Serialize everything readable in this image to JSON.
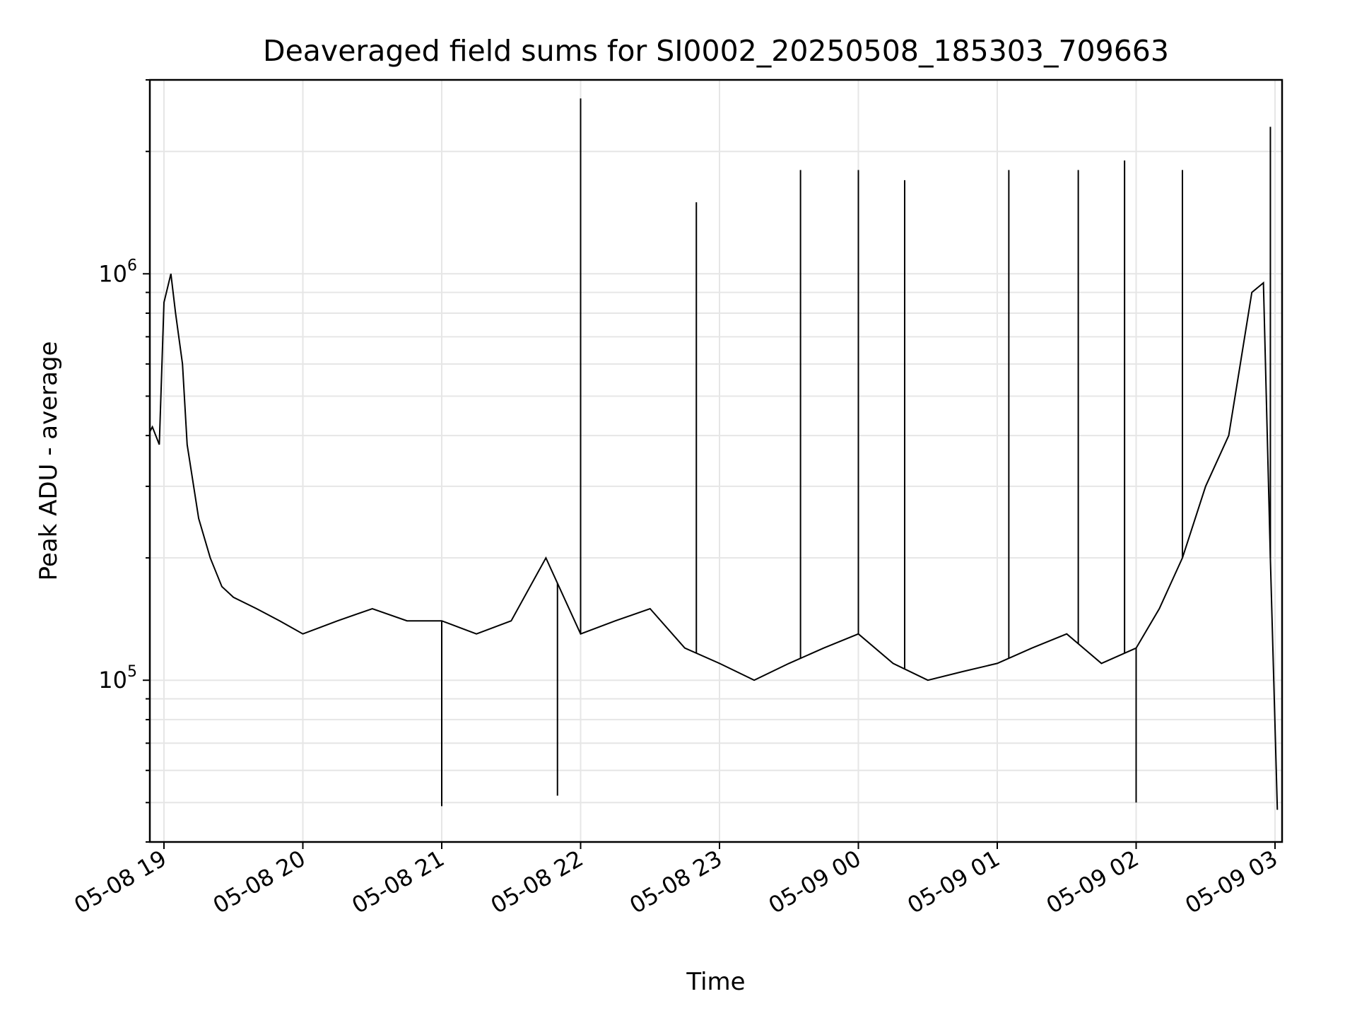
{
  "chart_data": {
    "type": "line",
    "title": "Deaveraged field sums for SI0002_20250508_185303_709663",
    "xlabel": "Time",
    "ylabel": "Peak ADU - average",
    "yscale": "log",
    "ylim": [
      40000,
      3000000
    ],
    "xlim": [
      "05-08 18:53",
      "05-09 03:01"
    ],
    "grid": true,
    "x_ticks": [
      "05-08 19",
      "05-08 20",
      "05-08 21",
      "05-08 22",
      "05-08 23",
      "05-09 00",
      "05-09 01",
      "05-09 02",
      "05-09 03"
    ],
    "y_ticks": [
      {
        "value": 100000,
        "base": "10",
        "exp": "5"
      },
      {
        "value": 1000000,
        "base": "10",
        "exp": "6"
      }
    ],
    "series": [
      {
        "color": "#000000",
        "x": [
          "05-08 18:53",
          "05-08 18:55",
          "05-08 18:58",
          "05-08 19:00",
          "05-08 19:03",
          "05-08 19:05",
          "05-08 19:08",
          "05-08 19:10",
          "05-08 19:15",
          "05-08 19:20",
          "05-08 19:25",
          "05-08 19:30",
          "05-08 19:40",
          "05-08 19:50",
          "05-08 20:00",
          "05-08 20:15",
          "05-08 20:30",
          "05-08 20:45",
          "05-08 21:00",
          "05-08 21:15",
          "05-08 21:30",
          "05-08 21:45",
          "05-08 22:00",
          "05-08 22:15",
          "05-08 22:30",
          "05-08 22:45",
          "05-08 23:00",
          "05-08 23:15",
          "05-08 23:30",
          "05-08 23:45",
          "05-09 00:00",
          "05-09 00:15",
          "05-09 00:30",
          "05-09 00:45",
          "05-09 01:00",
          "05-09 01:15",
          "05-09 01:30",
          "05-09 01:45",
          "05-09 02:00",
          "05-09 02:10",
          "05-09 02:20",
          "05-09 02:30",
          "05-09 02:40",
          "05-09 02:45",
          "05-09 02:50",
          "05-09 02:55",
          "05-09 02:58",
          "05-09 03:01"
        ],
        "values": [
          400000,
          420000,
          380000,
          850000,
          1000000,
          800000,
          600000,
          380000,
          250000,
          200000,
          170000,
          160000,
          150000,
          140000,
          130000,
          140000,
          150000,
          140000,
          140000,
          130000,
          140000,
          200000,
          130000,
          140000,
          150000,
          120000,
          110000,
          100000,
          110000,
          120000,
          130000,
          110000,
          100000,
          105000,
          110000,
          120000,
          130000,
          110000,
          120000,
          150000,
          200000,
          300000,
          400000,
          600000,
          900000,
          950000,
          200000,
          48000
        ]
      }
    ],
    "spikes": [
      {
        "x": "05-08 21:00",
        "y": 49000
      },
      {
        "x": "05-08 21:50",
        "y": 52000
      },
      {
        "x": "05-08 22:00",
        "y": 2700000
      },
      {
        "x": "05-08 22:50",
        "y": 1500000
      },
      {
        "x": "05-08 23:35",
        "y": 1800000
      },
      {
        "x": "05-09 00:00",
        "y": 1800000
      },
      {
        "x": "05-09 00:20",
        "y": 1700000
      },
      {
        "x": "05-09 01:05",
        "y": 1800000
      },
      {
        "x": "05-09 01:35",
        "y": 1800000
      },
      {
        "x": "05-09 01:55",
        "y": 1900000
      },
      {
        "x": "05-09 02:00",
        "y": 50000
      },
      {
        "x": "05-09 02:20",
        "y": 1800000
      },
      {
        "x": "05-09 02:58",
        "y": 2300000
      }
    ]
  }
}
